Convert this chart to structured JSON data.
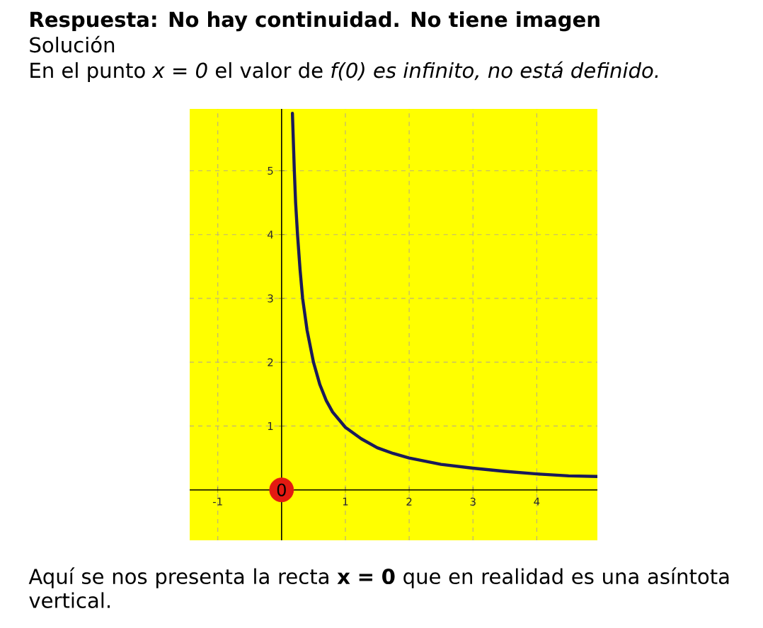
{
  "chart_data": {
    "type": "line",
    "title": "Respuesta: No hay continuidad. No tiene imagen",
    "subtitle": "Solución",
    "annotations": [
      "En el punto *x = 0* el valor de *f(0) es infinito, no está definido.*",
      "Aquí se nos presenta la recta **x = 0** que en realidad es una asíntota vertical."
    ],
    "xlim": [
      -1.44,
      4.95
    ],
    "ylim": [
      -0.79,
      5.97
    ],
    "xticks": [
      -1,
      1,
      2,
      3,
      4
    ],
    "yticks": [
      1,
      2,
      3,
      4,
      5
    ],
    "grid": true,
    "series": [
      {
        "color": "#1a1a5a",
        "x": [
          0.17,
          0.19,
          0.2,
          0.22,
          0.25,
          0.29,
          0.33,
          0.4,
          0.5,
          0.6,
          0.7,
          0.8,
          0.9,
          1.0,
          1.25,
          1.5,
          1.75,
          2.0,
          2.5,
          3.0,
          3.5,
          4.0,
          4.5,
          4.95
        ],
        "values": [
          5.9,
          5.3,
          5.0,
          4.5,
          4.0,
          3.45,
          3.0,
          2.5,
          2.0,
          1.65,
          1.4,
          1.22,
          1.1,
          0.98,
          0.8,
          0.66,
          0.57,
          0.5,
          0.4,
          0.34,
          0.29,
          0.25,
          0.22,
          0.21
        ]
      },
      {
        "type": "scatter",
        "color": "#e31a12",
        "marker": "circle",
        "x": [
          0
        ],
        "values": [
          0
        ],
        "value_labels": [
          "0"
        ]
      }
    ]
  }
}
